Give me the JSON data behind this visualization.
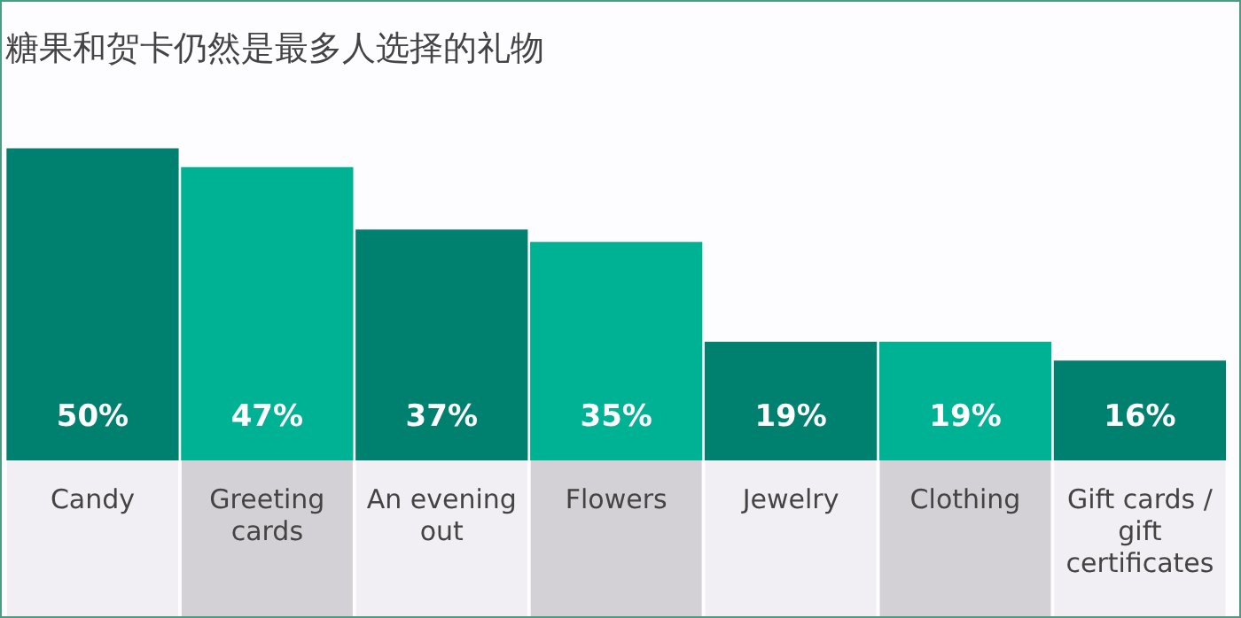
{
  "chart_data": {
    "type": "bar",
    "title": "糖果和贺卡仍然是最多人选择的礼物",
    "categories": [
      "Candy",
      "Greeting cards",
      "An evening out",
      "Flowers",
      "Jewelry",
      "Clothing",
      "Gift cards / gift certificates"
    ],
    "values": [
      50,
      47,
      37,
      35,
      19,
      19,
      16
    ],
    "colors": [
      "#00806e",
      "#00b294",
      "#00806e",
      "#00b294",
      "#00806e",
      "#00b294",
      "#00806e"
    ],
    "value_labels": [
      "50%",
      "47%",
      "37%",
      "35%",
      "19%",
      "19%",
      "16%"
    ],
    "grid": false,
    "legend": false
  }
}
